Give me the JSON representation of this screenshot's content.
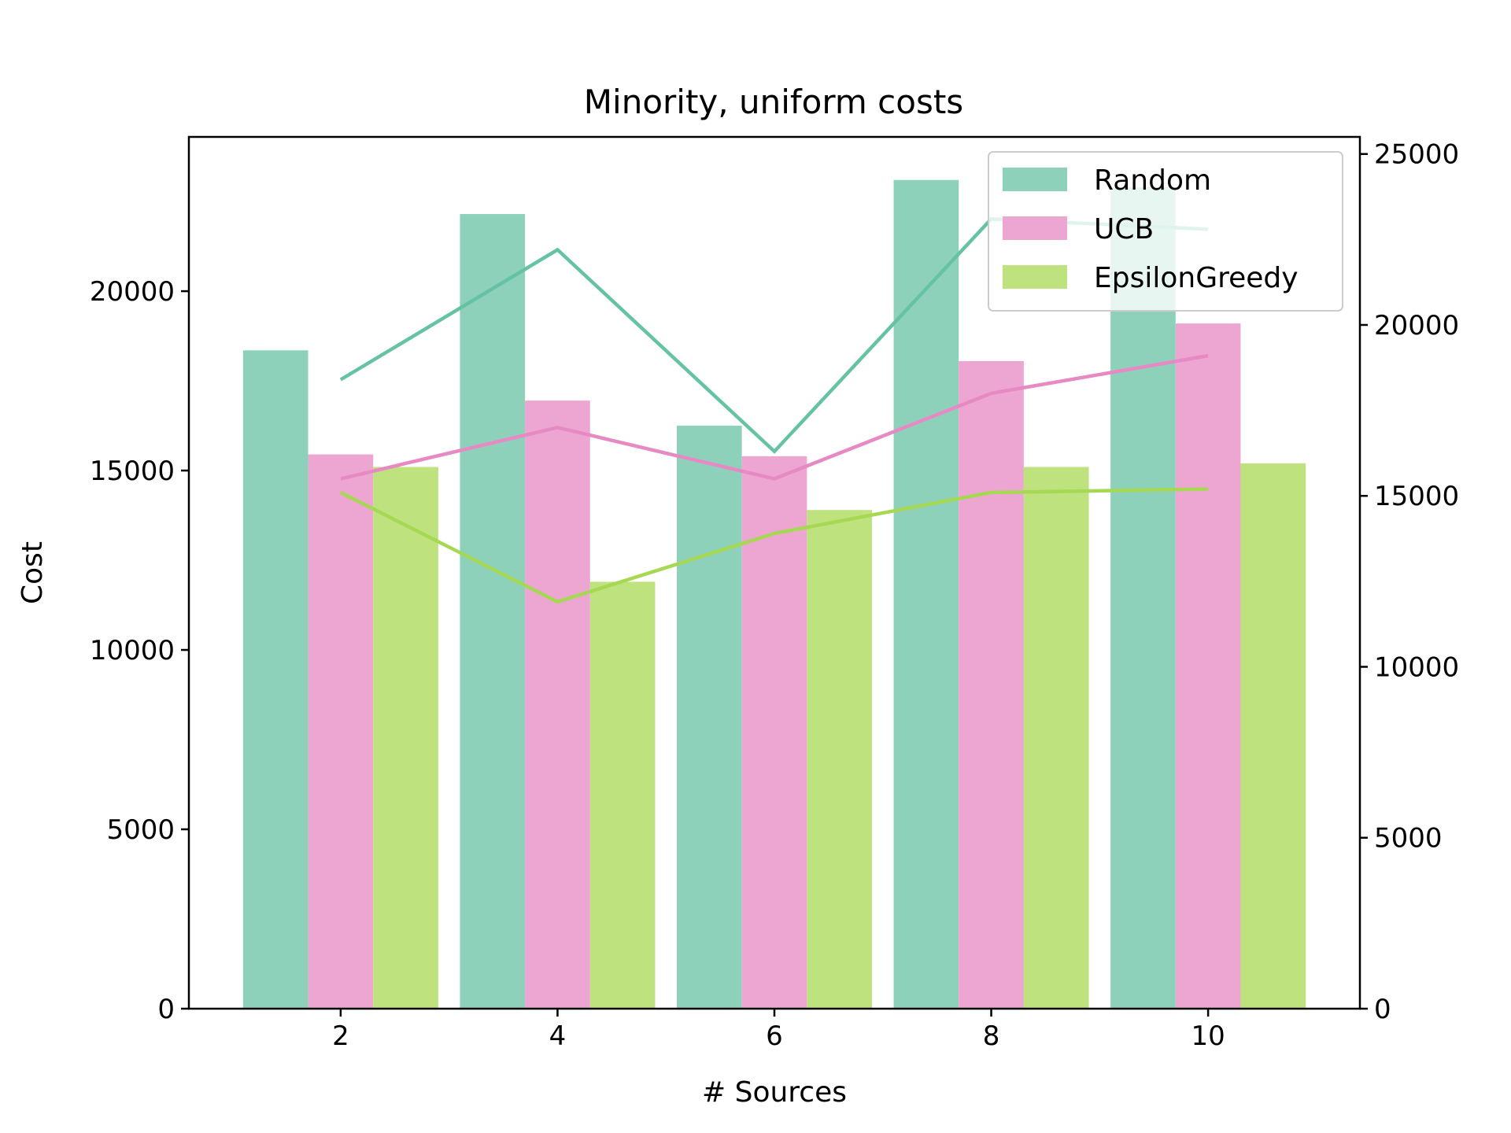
{
  "chart_data": {
    "type": "bar",
    "title": "Minority, uniform costs",
    "xlabel": "# Sources",
    "ylabel": "Cost",
    "y2label": "",
    "x": [
      2,
      4,
      6,
      8,
      10
    ],
    "xticks": [
      "2",
      "4",
      "6",
      "8",
      "10"
    ],
    "xlim": [
      0.6,
      11.4
    ],
    "ylim": [
      0,
      24300
    ],
    "y2lim": [
      0,
      25500
    ],
    "yticks": [
      "0",
      "5000",
      "10000",
      "15000",
      "20000"
    ],
    "y2ticks": [
      "0",
      "5000",
      "10000",
      "15000",
      "20000",
      "25000"
    ],
    "grid": false,
    "legend_position": "top-right",
    "bar_series": [
      {
        "name": "Random",
        "axis": "left",
        "color": "#8dd1bb",
        "values": [
          18350,
          22150,
          16250,
          23100,
          22900
        ]
      },
      {
        "name": "UCB",
        "axis": "left",
        "color": "#eda6d1",
        "values": [
          15450,
          16950,
          15400,
          18050,
          19100
        ]
      },
      {
        "name": "EpsilonGreedy",
        "axis": "left",
        "color": "#bde27e",
        "values": [
          15100,
          11900,
          13900,
          15100,
          15200
        ]
      }
    ],
    "line_series": [
      {
        "axis": "right",
        "color": "#66c2a5",
        "values": [
          18400,
          22200,
          16300,
          23100,
          22800
        ]
      },
      {
        "axis": "right",
        "color": "#e78ac3",
        "values": [
          15500,
          17000,
          15500,
          18000,
          19100
        ]
      },
      {
        "axis": "right",
        "color": "#a6d854",
        "values": [
          15100,
          11900,
          13900,
          15100,
          15200
        ]
      }
    ]
  }
}
